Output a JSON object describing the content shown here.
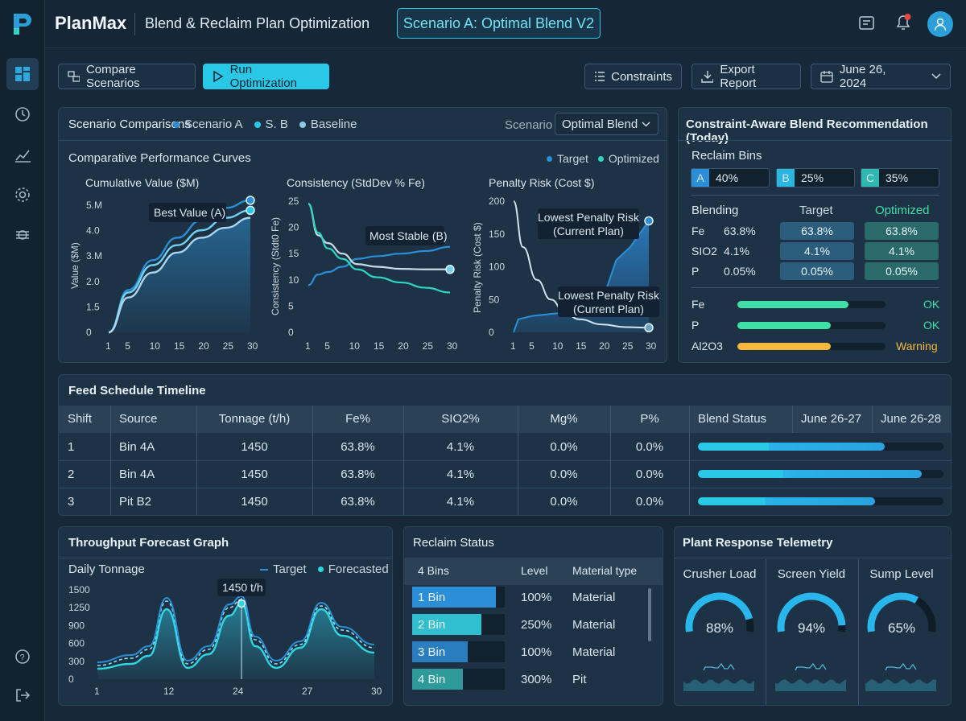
{
  "app": {
    "name": "PlanMax",
    "title": "Blend & Reclaim Plan Optimization",
    "scenario_badge": "Scenario A: Optimal Blend V2"
  },
  "toolbar": {
    "compare": "Compare Scenarios",
    "run": "Run Optimization",
    "constraints": "Constraints",
    "export": "Export Report",
    "date": "June 26, 2024"
  },
  "colors": {
    "accent": "#29c8e6",
    "blue": "#2b8fd8",
    "teal": "#2fd6c4",
    "warning": "#f5b83c",
    "ok": "#3ee0a8"
  },
  "comparisons": {
    "title": "Scenario Comparisons",
    "legend": [
      "Scenario A",
      "S. B",
      "Baseline"
    ],
    "scenario_label": "Scenario",
    "scenario_value": "Optimal Blend",
    "curves_title": "Comparative Performance Curves",
    "curves_legend": [
      "Target",
      "Optimized"
    ]
  },
  "chart_data": [
    {
      "type": "line",
      "title": "Cumulative Value ($M)",
      "ylabel": "Value ($M)",
      "x_ticks": [
        "1",
        "5",
        "10",
        "15",
        "20",
        "25",
        "30"
      ],
      "y_ticks": [
        "0",
        "1.5",
        "2.0",
        "3.M",
        "4.0",
        "5.M"
      ],
      "annotation": "Best Value (A)",
      "series": [
        {
          "points": [
            [
              1,
              0
            ],
            [
              5,
              1.7
            ],
            [
              10,
              2.9
            ],
            [
              15,
              3.8
            ],
            [
              20,
              4.5
            ],
            [
              25,
              5.0
            ],
            [
              30,
              5.3
            ]
          ]
        },
        {
          "points": [
            [
              1,
              0
            ],
            [
              5,
              1.6
            ],
            [
              10,
              2.7
            ],
            [
              15,
              3.5
            ],
            [
              20,
              4.1
            ],
            [
              25,
              4.6
            ],
            [
              30,
              4.9
            ]
          ]
        },
        {
          "points": [
            [
              1,
              0
            ],
            [
              5,
              1.4
            ],
            [
              10,
              2.4
            ],
            [
              15,
              3.2
            ],
            [
              20,
              3.8
            ],
            [
              25,
              4.2
            ],
            [
              30,
              4.6
            ]
          ]
        }
      ]
    },
    {
      "type": "line",
      "title": "Consistency (StdDev % Fe)",
      "ylabel": "Consistency (Stdt0 Fe)",
      "x_ticks": [
        "1",
        "5",
        "10",
        "15",
        "20",
        "25",
        "30"
      ],
      "y_ticks": [
        "0",
        "5",
        "10",
        "15",
        "20",
        "25"
      ],
      "annotation": "Most Stable (B)",
      "series": [
        {
          "points": [
            [
              1,
              9
            ],
            [
              3,
              11
            ],
            [
              5,
              11.5
            ],
            [
              8,
              12.5
            ],
            [
              11,
              14
            ],
            [
              15,
              14.5
            ],
            [
              20,
              15
            ],
            [
              25,
              15.5
            ],
            [
              30,
              16.3
            ]
          ]
        },
        {
          "points": [
            [
              1,
              24.5
            ],
            [
              3,
              18.5
            ],
            [
              5,
              17
            ],
            [
              8,
              15
            ],
            [
              11,
              13
            ],
            [
              15,
              12.5
            ],
            [
              20,
              12.1
            ],
            [
              25,
              12
            ],
            [
              30,
              12
            ]
          ]
        },
        {
          "points": [
            [
              1,
              24.5
            ],
            [
              3,
              19
            ],
            [
              5,
              16
            ],
            [
              8,
              14
            ],
            [
              11,
              12
            ],
            [
              15,
              10.5
            ],
            [
              20,
              9.5
            ],
            [
              25,
              8.5
            ],
            [
              30,
              7.6
            ]
          ]
        }
      ]
    },
    {
      "type": "area",
      "title": "Penalty Risk (Cost $)",
      "ylabel": "Penalty Risk (Cost $)",
      "x_ticks": [
        "1",
        "5",
        "10",
        "15",
        "20",
        "25",
        "30"
      ],
      "y_ticks": [
        "0",
        "50",
        "100",
        "150",
        "200"
      ],
      "annotations": [
        "Lowest Penalty Risk\n(Current Plan)",
        "Lowest Penalty Risk\n(Current Plan)"
      ],
      "series": [
        {
          "points": [
            [
              1,
              0
            ],
            [
              2,
              20
            ],
            [
              5,
              25
            ],
            [
              9,
              28
            ],
            [
              12,
              30
            ],
            [
              15,
              45
            ],
            [
              18,
              52
            ],
            [
              21,
              68
            ],
            [
              23,
              110
            ],
            [
              26,
              130
            ],
            [
              28,
              150
            ],
            [
              30,
              170
            ]
          ]
        },
        {
          "points": [
            [
              1,
              200
            ],
            [
              3,
              130
            ],
            [
              6,
              80
            ],
            [
              9,
              50
            ],
            [
              12,
              30
            ],
            [
              15,
              20
            ],
            [
              20,
              12
            ],
            [
              25,
              8
            ],
            [
              30,
              7
            ]
          ]
        }
      ]
    },
    {
      "type": "line",
      "title": "Throughput Forecast Graph",
      "subtitle": "Daily Tonnage",
      "legend": [
        "Target",
        "Forecasted"
      ],
      "x_ticks": [
        "1",
        "12",
        "24",
        "27",
        "30"
      ],
      "y_ticks": [
        "0",
        "300",
        "600",
        "900",
        "1250",
        "1500"
      ],
      "annotation": "1450 t/h"
    }
  ],
  "recommendation": {
    "title": "Constraint-Aware Blend Recommendation (Today)",
    "bins_label": "Reclaim Bins",
    "bins": [
      {
        "letter": "A",
        "value": "40%"
      },
      {
        "letter": "B",
        "value": "25%"
      },
      {
        "letter": "C",
        "value": "35%"
      }
    ],
    "blending_label": "Blending",
    "target_label": "Target",
    "optimized_label": "Optimized",
    "rows": [
      {
        "name": "Fe",
        "value": "63.8%",
        "target": "63.8%",
        "optimized": "63.8%"
      },
      {
        "name": "SIO2",
        "value": "4.1%",
        "target": "4.1%",
        "optimized": "4.1%"
      },
      {
        "name": "P",
        "value": "0.05%",
        "target": "0.05%",
        "optimized": "0.05%"
      }
    ],
    "constraints": [
      {
        "name": "Fe",
        "fill": 0.75,
        "status": "OK"
      },
      {
        "name": "P",
        "fill": 0.63,
        "status": "OK"
      },
      {
        "name": "Al2O3",
        "fill": 0.63,
        "status": "Warning"
      }
    ]
  },
  "feed": {
    "title": "Feed Schedule Timeline",
    "columns": [
      "Shift",
      "Source",
      "Tonnage (t/h)",
      "Fe%",
      "SIO2%",
      "Mg%",
      "P%",
      "Blend Status",
      "June 26-27",
      "June 26-28"
    ],
    "rows": [
      {
        "shift": "1",
        "source": "Bin 4A",
        "tonnage": "1450",
        "fe": "63.8%",
        "sio2": "4.1%",
        "mg": "0.0%",
        "p": "0.0%",
        "progress": 0.76
      },
      {
        "shift": "2",
        "source": "Bin 4A",
        "tonnage": "1450",
        "fe": "63.8%",
        "sio2": "4.1%",
        "mg": "0.0%",
        "p": "0.0%",
        "progress": 0.91
      },
      {
        "shift": "3",
        "source": "Pit B2",
        "tonnage": "1450",
        "fe": "63.8%",
        "sio2": "4.1%",
        "mg": "0.0%",
        "p": "0.0%",
        "progress": 0.72
      }
    ]
  },
  "throughput": {
    "title": "Throughput Forecast Graph",
    "subtitle": "Daily Tonnage",
    "legend_target": "Target",
    "legend_forecast": "Forecasted",
    "annotation": "1450 t/h"
  },
  "reclaim": {
    "title": "Reclaim Status",
    "columns": [
      "4 Bins",
      "Level",
      "Material type"
    ],
    "rows": [
      {
        "bin": "1 Bin",
        "level": "100%",
        "type": "Material",
        "fill": 0.9
      },
      {
        "bin": "2 Bin",
        "level": "250%",
        "type": "Material",
        "fill": 0.75
      },
      {
        "bin": "3 Bin",
        "level": "100%",
        "type": "Material",
        "fill": 0.6
      },
      {
        "bin": "4 Bin",
        "level": "300%",
        "type": "Pit",
        "fill": 0.55
      }
    ]
  },
  "telemetry": {
    "title": "Plant Response Telemetry",
    "gauges": [
      {
        "label": "Crusher Load",
        "value": "88%",
        "fraction": 0.88
      },
      {
        "label": "Screen Yield",
        "value": "94%",
        "fraction": 0.94
      },
      {
        "label": "Sump Level",
        "value": "65%",
        "fraction": 0.65
      }
    ]
  }
}
